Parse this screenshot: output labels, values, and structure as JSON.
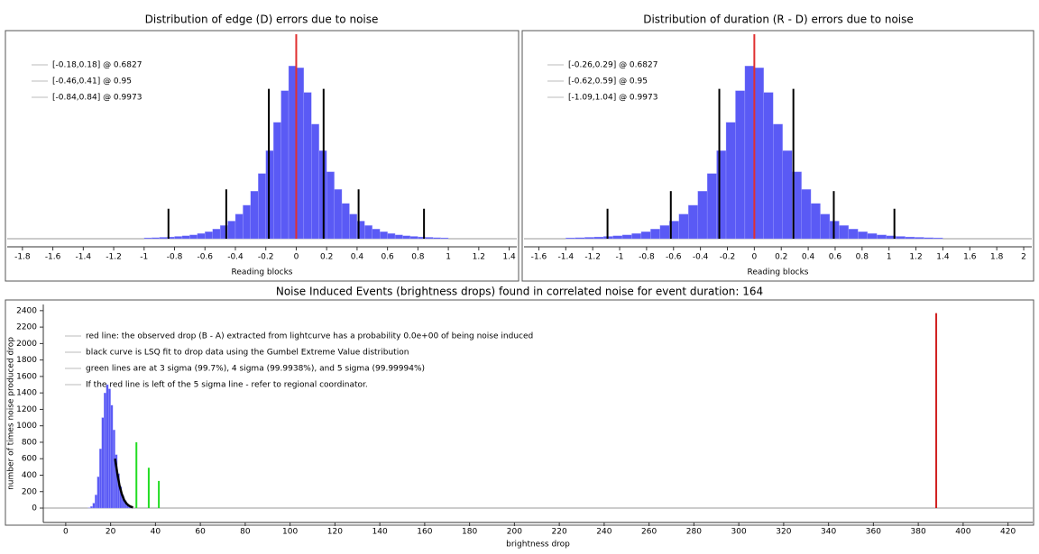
{
  "chart_data": [
    {
      "type": "histogram",
      "title": "Distribution of edge (D) errors due to noise",
      "xlabel": "Reading blocks",
      "color": "#5a5af5",
      "bins": [
        -1.0,
        -0.95,
        -0.9,
        -0.85,
        -0.8,
        -0.75,
        -0.7,
        -0.65,
        -0.6,
        -0.55,
        -0.5,
        -0.45,
        -0.4,
        -0.35,
        -0.3,
        -0.25,
        -0.2,
        -0.15,
        -0.1,
        -0.05,
        0,
        0.05,
        0.1,
        0.15,
        0.2,
        0.25,
        0.3,
        0.35,
        0.4,
        0.45,
        0.5,
        0.55,
        0.6,
        0.65,
        0.7,
        0.75,
        0.8,
        0.85,
        0.9,
        0.95,
        1.0
      ],
      "values": [
        0.5,
        0.6,
        0.8,
        1,
        1.3,
        1.7,
        2.2,
        3,
        4,
        5.5,
        7.5,
        10,
        14,
        19,
        27,
        37,
        50,
        66,
        84,
        98,
        97,
        83,
        65,
        50,
        38,
        28,
        20,
        14,
        10,
        7.5,
        5.5,
        4,
        3,
        2.2,
        1.7,
        1.3,
        1,
        0.8,
        0.6,
        0.5
      ],
      "xlim": [
        -1.9,
        1.45
      ],
      "ylim": [
        -4.6,
        116
      ],
      "xticks": [
        -1.8,
        -1.6,
        -1.4,
        -1.2,
        -1,
        -0.8,
        -0.6,
        -0.4,
        -0.2,
        0,
        0.2,
        0.4,
        0.6,
        0.8,
        1,
        1.2,
        1.4
      ],
      "legend": [
        "[-0.18,0.18] @ 0.6827",
        "[-0.46,0.41] @ 0.95",
        "[-0.84,0.84] @ 0.9973"
      ],
      "lines": [
        {
          "x": 0,
          "height": 116,
          "color": "#e03030"
        },
        {
          "x": -0.18,
          "height": 85,
          "color": "#000000"
        },
        {
          "x": 0.18,
          "height": 85,
          "color": "#000000"
        },
        {
          "x": -0.46,
          "height": 28,
          "color": "#000000"
        },
        {
          "x": 0.41,
          "height": 28,
          "color": "#000000"
        },
        {
          "x": -0.84,
          "height": 17,
          "color": "#000000"
        },
        {
          "x": 0.84,
          "height": 17,
          "color": "#000000"
        }
      ]
    },
    {
      "type": "histogram",
      "title": "Distribution of duration (R - D) errors due to noise",
      "xlabel": "Reading blocks",
      "color": "#5a5af5",
      "bins": [
        -1.4,
        -1.33,
        -1.26,
        -1.19,
        -1.12,
        -1.05,
        -0.98,
        -0.91,
        -0.84,
        -0.77,
        -0.7,
        -0.63,
        -0.56,
        -0.49,
        -0.42,
        -0.35,
        -0.28,
        -0.21,
        -0.14,
        -0.07,
        0,
        0.07,
        0.14,
        0.21,
        0.28,
        0.35,
        0.42,
        0.49,
        0.56,
        0.63,
        0.7,
        0.77,
        0.84,
        0.91,
        0.98,
        1.05,
        1.12,
        1.19,
        1.26,
        1.33,
        1.4
      ],
      "values": [
        0.5,
        0.6,
        0.8,
        1,
        1.3,
        1.7,
        2.2,
        3,
        4,
        5.5,
        7.5,
        10,
        14,
        19,
        27,
        37,
        50,
        66,
        84,
        98,
        97,
        83,
        65,
        50,
        38,
        28,
        20,
        14,
        10,
        7.5,
        5.5,
        4,
        3,
        2.2,
        1.7,
        1.3,
        1,
        0.8,
        0.6,
        0.5
      ],
      "xlim": [
        -1.71,
        2.06
      ],
      "ylim": [
        -4.6,
        116
      ],
      "xticks": [
        -1.6,
        -1.4,
        -1.2,
        -1,
        -0.8,
        -0.6,
        -0.4,
        -0.2,
        0,
        0.2,
        0.4,
        0.6,
        0.8,
        1,
        1.2,
        1.4,
        1.6,
        1.8,
        2
      ],
      "legend": [
        "[-0.26,0.29] @ 0.6827",
        "[-0.62,0.59] @ 0.95",
        "[-1.09,1.04] @ 0.9973"
      ],
      "lines": [
        {
          "x": 0,
          "height": 116,
          "color": "#e03030"
        },
        {
          "x": -0.26,
          "height": 85,
          "color": "#000000"
        },
        {
          "x": 0.29,
          "height": 85,
          "color": "#000000"
        },
        {
          "x": -0.62,
          "height": 27,
          "color": "#000000"
        },
        {
          "x": 0.59,
          "height": 27,
          "color": "#000000"
        },
        {
          "x": -1.09,
          "height": 17,
          "color": "#000000"
        },
        {
          "x": 1.04,
          "height": 17,
          "color": "#000000"
        }
      ]
    },
    {
      "type": "histogram",
      "title": "Noise Induced Events (brightness drops) found in correlated noise for event duration: 164",
      "xlabel": "brightness drop",
      "ylabel": "number of times noise produced drop",
      "color": "#5a5af5",
      "bins": [
        10,
        11,
        12,
        13,
        14,
        15,
        16,
        17,
        18,
        19,
        20,
        21,
        22,
        23,
        24,
        25,
        26,
        27,
        28,
        29,
        30
      ],
      "values": [
        5,
        20,
        60,
        160,
        380,
        720,
        1100,
        1400,
        1500,
        1450,
        1250,
        950,
        650,
        420,
        260,
        150,
        90,
        50,
        25,
        10
      ],
      "xlim": [
        -10,
        431
      ],
      "ylim": [
        -175,
        2475
      ],
      "xticks": [
        0,
        20,
        40,
        60,
        80,
        100,
        120,
        140,
        160,
        180,
        200,
        220,
        240,
        260,
        280,
        300,
        320,
        340,
        360,
        380,
        400,
        420
      ],
      "yticks": [
        0,
        200,
        400,
        600,
        800,
        1000,
        1200,
        1400,
        1600,
        1800,
        2000,
        2200,
        2400
      ],
      "legend": [
        "red line: the observed drop (B - A) extracted from lightcurve has a probability 0.0e+00 of being noise induced",
        "black curve is LSQ fit to drop data using the Gumbel Extreme Value distribution",
        "green lines are at 3 sigma (99.7%), 4 sigma (99.9938%), and 5 sigma (99.99994%)",
        "If the red line is left of the 5 sigma line - refer to regional coordinator."
      ],
      "curve": {
        "x": [
          22,
          23,
          24,
          25,
          26,
          27,
          28,
          29,
          30
        ],
        "y": [
          600,
          420,
          270,
          170,
          100,
          58,
          32,
          17,
          8
        ],
        "color": "#000000"
      },
      "lines": [
        {
          "x": 31.5,
          "height": 800,
          "color": "#22dd22"
        },
        {
          "x": 37,
          "height": 490,
          "color": "#22dd22"
        },
        {
          "x": 41.5,
          "height": 330,
          "color": "#22dd22"
        },
        {
          "x": 388,
          "height": 2370,
          "color": "#d02020"
        }
      ]
    }
  ]
}
